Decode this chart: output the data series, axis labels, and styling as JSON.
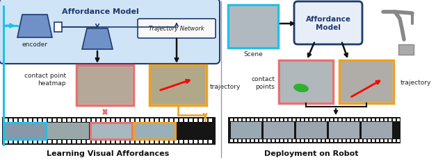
{
  "title_left": "Affordance Model",
  "title_right": "Affordance\nModel",
  "label_encoder": "encoder",
  "label_trajectory_network": "Trajectory Network",
  "label_contact_heatmap": "contact point\nheatmap",
  "label_trajectory_left": "trajectory",
  "label_scene": "Scene",
  "label_contact_points": "contact\npoints",
  "label_trajectory_right": "trajectory",
  "caption_left": "Learning Visual Affordances",
  "caption_right": "Deployment on Robot",
  "bg_color": "#ffffff",
  "box_blue_light": "#d0e4f7",
  "box_blue_dark": "#1e3a6e",
  "box_pink": "#e87070",
  "box_orange": "#f0a020",
  "box_cyan": "#20c0e8",
  "film_bg": "#151515",
  "arrow_color": "#111111",
  "divider_color": "#999999",
  "enc_color": "#7090c8",
  "traj_net_bg": "#f8f8f8"
}
